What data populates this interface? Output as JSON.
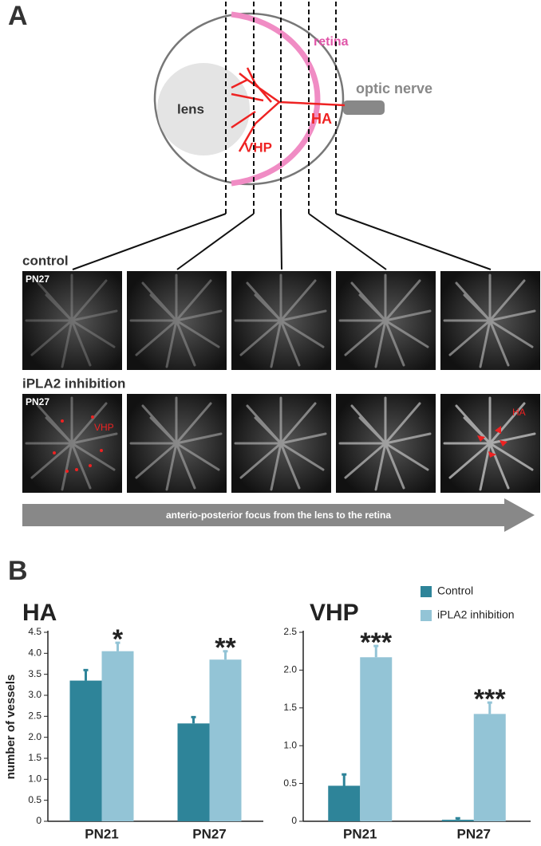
{
  "panel_a": {
    "label": "A",
    "diagram": {
      "retina": "retina",
      "optic_nerve": "optic nerve",
      "lens": "lens",
      "ha": "HA",
      "vhp": "VHP"
    },
    "rows": [
      {
        "label": "control",
        "age": "PN27"
      },
      {
        "label": "iPLA2 inhibition",
        "age": "PN27",
        "vhp": "VHP",
        "ha": "HA"
      }
    ],
    "arrow": "anterio-posterior focus from the lens to the retina"
  },
  "panel_b": {
    "label": "B"
  },
  "chart_data": [
    {
      "type": "bar",
      "title": "HA",
      "y_label": "number of vessels",
      "categories": [
        "PN21",
        "PN27"
      ],
      "series": [
        {
          "name": "Control",
          "color": "#2e8499",
          "values": [
            3.35,
            2.33
          ],
          "errors": [
            0.25,
            0.15
          ]
        },
        {
          "name": "iPLA2 inhibition",
          "color": "#93c4d6",
          "values": [
            4.05,
            3.85
          ],
          "errors": [
            0.2,
            0.2
          ]
        }
      ],
      "significance": [
        "*",
        "**"
      ],
      "legend": false,
      "ylim": [
        0,
        4.5
      ],
      "yticks": [
        0,
        0.5,
        {
          "value": 1,
          "label": "1.0"
        },
        1.5,
        {
          "value": 2,
          "label": "2.0"
        },
        2.5,
        {
          "value": 3,
          "label": "3.0"
        },
        3.5,
        {
          "value": 4,
          "label": "4.0"
        },
        4.5
      ]
    },
    {
      "type": "bar",
      "title": "VHP",
      "categories": [
        "PN21",
        "PN27"
      ],
      "series": [
        {
          "name": "Control",
          "color": "#2e8499",
          "values": [
            0.47,
            0.02
          ],
          "errors": [
            0.15,
            0.02
          ]
        },
        {
          "name": "iPLA2 inhibition",
          "color": "#93c4d6",
          "values": [
            2.17,
            1.42
          ],
          "errors": [
            0.15,
            0.15
          ]
        }
      ],
      "significance": [
        "***",
        "***"
      ],
      "legend": true,
      "ylim": [
        0,
        2.5
      ],
      "yticks": [
        0,
        0.5,
        {
          "value": 1,
          "label": "1.0"
        },
        1.5,
        {
          "value": 2,
          "label": "2.0"
        },
        2.5
      ]
    }
  ]
}
